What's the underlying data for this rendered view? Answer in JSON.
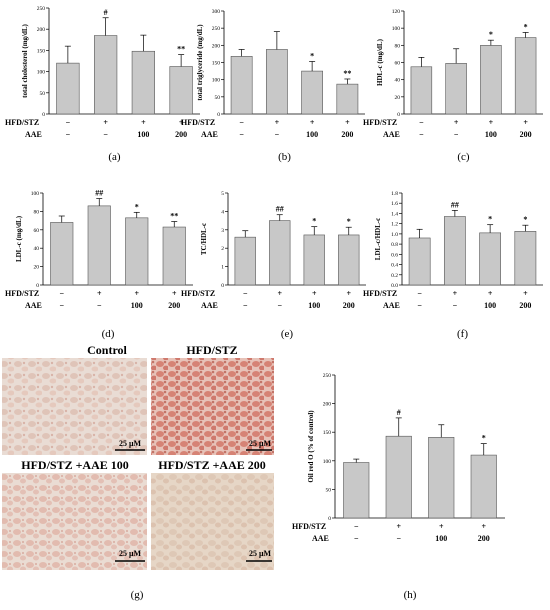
{
  "colors": {
    "bar": "#c8c8c8",
    "bar_stroke": "#555555",
    "axis": "#000000",
    "tissue_a": "#e6d3cb",
    "tissue_b": "#d9968a",
    "tissue_c": "#e3c8bd",
    "tissue_d": "#dfc6b6"
  },
  "group_labels": {
    "row1": "HFD/STZ",
    "row2": "AAE",
    "row1_signs": [
      "−",
      "+",
      "+",
      "+"
    ],
    "row2_signs": [
      "−",
      "−",
      "100",
      "200"
    ]
  },
  "chart_data": [
    {
      "id": "a",
      "type": "bar",
      "panel_label": "(a)",
      "ylabel": "total cholesterol (mg/dL)",
      "ylim": [
        0,
        250
      ],
      "yticks": [
        0,
        50,
        100,
        150,
        200,
        250
      ],
      "values": [
        120,
        185,
        148,
        112
      ],
      "errors": [
        40,
        42,
        38,
        28
      ],
      "annotations": [
        "",
        "#",
        "",
        "**"
      ]
    },
    {
      "id": "b",
      "type": "bar",
      "panel_label": "(b)",
      "ylabel": "total triglyceride (mg/dL)",
      "ylim": [
        0,
        300
      ],
      "yticks": [
        0,
        50,
        100,
        150,
        200,
        250,
        300
      ],
      "values": [
        168,
        188,
        125,
        87
      ],
      "errors": [
        20,
        52,
        28,
        15
      ],
      "annotations": [
        "",
        "",
        "*",
        "**"
      ]
    },
    {
      "id": "c",
      "type": "bar",
      "panel_label": "(c)",
      "ylabel": "HDL-c (mg/dL)",
      "ylim": [
        0,
        120
      ],
      "yticks": [
        0,
        20,
        40,
        60,
        80,
        100,
        120
      ],
      "values": [
        55,
        59,
        80,
        89
      ],
      "errors": [
        11,
        17,
        6,
        6
      ],
      "annotations": [
        "",
        "",
        "*",
        "*"
      ]
    },
    {
      "id": "d",
      "type": "bar",
      "panel_label": "(d)",
      "ylabel": "LDL-c (mg/dL)",
      "ylim": [
        0,
        100
      ],
      "yticks": [
        0,
        20,
        40,
        60,
        80,
        100
      ],
      "values": [
        68,
        86,
        73,
        63
      ],
      "errors": [
        7,
        8,
        6,
        6
      ],
      "annotations": [
        "",
        "##",
        "*",
        "**"
      ]
    },
    {
      "id": "e",
      "type": "bar",
      "panel_label": "(e)",
      "ylabel": "TC/HDL-c",
      "ylim": [
        0,
        5
      ],
      "yticks": [
        0,
        1,
        2,
        3,
        4,
        5
      ],
      "values": [
        2.6,
        3.5,
        2.72,
        2.72
      ],
      "errors": [
        0.35,
        0.32,
        0.45,
        0.42
      ],
      "annotations": [
        "",
        "##",
        "*",
        "*"
      ]
    },
    {
      "id": "f",
      "type": "bar",
      "panel_label": "(f)",
      "ylabel": "LDL-c/HDL-c",
      "ylim": [
        0,
        1.8
      ],
      "yticks": [
        0,
        0.2,
        0.4,
        0.6,
        0.8,
        1.0,
        1.2,
        1.4,
        1.6,
        1.8
      ],
      "values": [
        0.92,
        1.34,
        1.02,
        1.05
      ],
      "errors": [
        0.17,
        0.12,
        0.16,
        0.12
      ],
      "annotations": [
        "",
        "##",
        "*",
        "*"
      ]
    },
    {
      "id": "h",
      "type": "bar",
      "panel_label": "(h)",
      "ylabel": "Oil red O (% of control)",
      "ylim": [
        0,
        250
      ],
      "yticks": [
        0,
        50,
        100,
        150,
        200,
        250
      ],
      "values": [
        97,
        143,
        141,
        110
      ],
      "errors": [
        6,
        32,
        22,
        20
      ],
      "annotations": [
        "",
        "#",
        "",
        "*"
      ]
    }
  ],
  "micrographs": {
    "panel_label": "(g)",
    "titles": [
      "Control",
      "HFD/STZ",
      "HFD/STZ +AAE 100",
      "HFD/STZ +AAE 200"
    ],
    "scale_label": "25 μM"
  }
}
